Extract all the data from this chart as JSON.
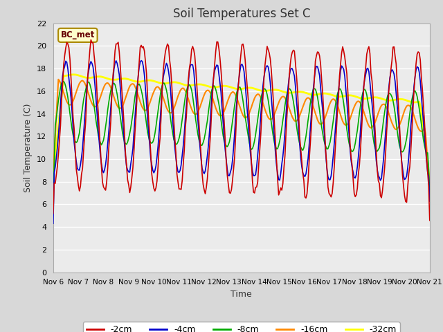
{
  "title": "Soil Temperatures Set C",
  "xlabel": "Time",
  "ylabel": "Soil Temperature (C)",
  "ylim": [
    0,
    22
  ],
  "yticks": [
    0,
    2,
    4,
    6,
    8,
    10,
    12,
    14,
    16,
    18,
    20,
    22
  ],
  "xlim": [
    0,
    360
  ],
  "xtick_labels": [
    "Nov 6",
    "Nov 7",
    "Nov 8",
    "Nov 9",
    "Nov 10",
    "Nov 11",
    "Nov 12",
    "Nov 13",
    "Nov 14",
    "Nov 15",
    "Nov 16",
    "Nov 17",
    "Nov 18",
    "Nov 19",
    "Nov 20",
    "Nov 21"
  ],
  "xtick_positions": [
    0,
    24,
    48,
    72,
    96,
    120,
    144,
    168,
    192,
    216,
    240,
    264,
    288,
    312,
    336,
    360
  ],
  "colors": {
    "-2cm": "#cc0000",
    "-4cm": "#0000cc",
    "-8cm": "#00aa00",
    "-16cm": "#ff8800",
    "-32cm": "#ffff00"
  },
  "label_box": "BC_met",
  "label_box_bg": "#ffffcc",
  "label_box_border": "#aa8800",
  "fig_bg": "#d8d8d8",
  "plot_bg": "#ebebeb",
  "grid_color": "#ffffff"
}
